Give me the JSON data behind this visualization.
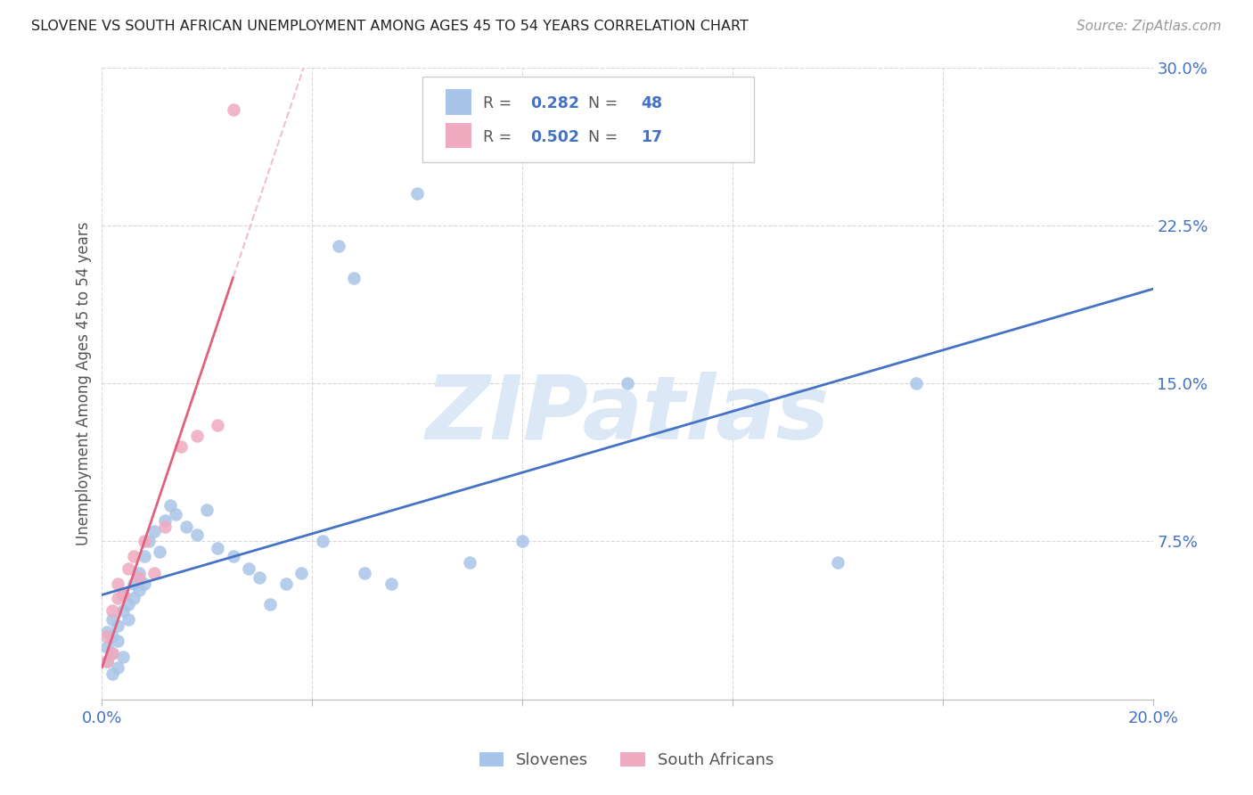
{
  "title": "SLOVENE VS SOUTH AFRICAN UNEMPLOYMENT AMONG AGES 45 TO 54 YEARS CORRELATION CHART",
  "source": "Source: ZipAtlas.com",
  "ylabel": "Unemployment Among Ages 45 to 54 years",
  "xlim": [
    0.0,
    0.2
  ],
  "ylim": [
    0.0,
    0.3
  ],
  "xticks": [
    0.0,
    0.04,
    0.08,
    0.12,
    0.16,
    0.2
  ],
  "yticks": [
    0.0,
    0.075,
    0.15,
    0.225,
    0.3
  ],
  "xticklabels": [
    "0.0%",
    "",
    "",
    "",
    "",
    "20.0%"
  ],
  "yticklabels": [
    "",
    "7.5%",
    "15.0%",
    "22.5%",
    "30.0%"
  ],
  "background_color": "#ffffff",
  "grid_color": "#d8d8d8",
  "watermark_text": "ZIPatlas",
  "slovene_color": "#a8c4e8",
  "south_african_color": "#f0aac0",
  "slovene_line_color": "#4472c4",
  "south_african_line_color": "#e06080",
  "south_african_dash_color": "#f0c0cc",
  "R_slovene": 0.282,
  "N_slovene": 48,
  "R_south_african": 0.502,
  "N_south_african": 17,
  "slovene_x": [
    0.001,
    0.001,
    0.001,
    0.002,
    0.002,
    0.002,
    0.002,
    0.003,
    0.003,
    0.003,
    0.004,
    0.004,
    0.004,
    0.005,
    0.005,
    0.006,
    0.006,
    0.007,
    0.007,
    0.008,
    0.008,
    0.009,
    0.01,
    0.011,
    0.012,
    0.013,
    0.014,
    0.016,
    0.018,
    0.02,
    0.022,
    0.025,
    0.028,
    0.03,
    0.032,
    0.035,
    0.038,
    0.042,
    0.045,
    0.048,
    0.05,
    0.055,
    0.06,
    0.07,
    0.08,
    0.1,
    0.14,
    0.155
  ],
  "slovene_y": [
    0.025,
    0.032,
    0.018,
    0.03,
    0.022,
    0.038,
    0.012,
    0.035,
    0.028,
    0.015,
    0.042,
    0.02,
    0.05,
    0.038,
    0.045,
    0.055,
    0.048,
    0.06,
    0.052,
    0.068,
    0.055,
    0.075,
    0.08,
    0.07,
    0.085,
    0.092,
    0.088,
    0.082,
    0.078,
    0.09,
    0.072,
    0.068,
    0.062,
    0.058,
    0.045,
    0.055,
    0.06,
    0.075,
    0.215,
    0.2,
    0.06,
    0.055,
    0.24,
    0.065,
    0.075,
    0.15,
    0.065,
    0.15
  ],
  "south_african_x": [
    0.001,
    0.001,
    0.002,
    0.002,
    0.003,
    0.003,
    0.004,
    0.005,
    0.006,
    0.007,
    0.008,
    0.01,
    0.012,
    0.015,
    0.018,
    0.022,
    0.025
  ],
  "south_african_y": [
    0.03,
    0.018,
    0.042,
    0.022,
    0.055,
    0.048,
    0.05,
    0.062,
    0.068,
    0.058,
    0.075,
    0.06,
    0.082,
    0.12,
    0.125,
    0.13,
    0.28
  ],
  "sa_line_solid_end": 0.025,
  "sa_line_x_start": 0.0,
  "sa_line_x_end": 0.2
}
